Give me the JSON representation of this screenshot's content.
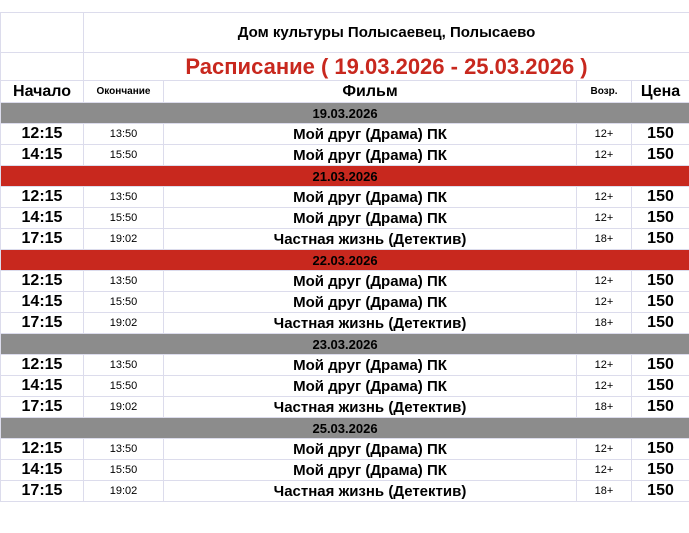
{
  "header": {
    "venue": "Дом культуры Полысаевец, Полысаево",
    "schedule_title": "Расписание ( 19.03.2026 - 25.03.2026 )"
  },
  "columns": {
    "start": "Начало",
    "end": "Окончание",
    "film": "Фильм",
    "age": "Возр.",
    "price": "Цена"
  },
  "colors": {
    "title_red": "#c8281e",
    "date_gray": "#8c8c8c",
    "date_red": "#c8281e"
  },
  "days": [
    {
      "date": "19.03.2026",
      "color": "#8c8c8c",
      "sessions": [
        {
          "start": "12:15",
          "end": "13:50",
          "film": "Мой друг (Драма) ПК",
          "age": "12+",
          "price": "150"
        },
        {
          "start": "14:15",
          "end": "15:50",
          "film": "Мой друг (Драма) ПК",
          "age": "12+",
          "price": "150"
        }
      ]
    },
    {
      "date": "21.03.2026",
      "color": "#c8281e",
      "sessions": [
        {
          "start": "12:15",
          "end": "13:50",
          "film": "Мой друг (Драма) ПК",
          "age": "12+",
          "price": "150"
        },
        {
          "start": "14:15",
          "end": "15:50",
          "film": "Мой друг (Драма) ПК",
          "age": "12+",
          "price": "150"
        },
        {
          "start": "17:15",
          "end": "19:02",
          "film": "Частная жизнь (Детектив)",
          "age": "18+",
          "price": "150"
        }
      ]
    },
    {
      "date": "22.03.2026",
      "color": "#c8281e",
      "sessions": [
        {
          "start": "12:15",
          "end": "13:50",
          "film": "Мой друг (Драма) ПК",
          "age": "12+",
          "price": "150"
        },
        {
          "start": "14:15",
          "end": "15:50",
          "film": "Мой друг (Драма) ПК",
          "age": "12+",
          "price": "150"
        },
        {
          "start": "17:15",
          "end": "19:02",
          "film": "Частная жизнь (Детектив)",
          "age": "18+",
          "price": "150"
        }
      ]
    },
    {
      "date": "23.03.2026",
      "color": "#8c8c8c",
      "sessions": [
        {
          "start": "12:15",
          "end": "13:50",
          "film": "Мой друг (Драма) ПК",
          "age": "12+",
          "price": "150"
        },
        {
          "start": "14:15",
          "end": "15:50",
          "film": "Мой друг (Драма) ПК",
          "age": "12+",
          "price": "150"
        },
        {
          "start": "17:15",
          "end": "19:02",
          "film": "Частная жизнь (Детектив)",
          "age": "18+",
          "price": "150"
        }
      ]
    },
    {
      "date": "25.03.2026",
      "color": "#8c8c8c",
      "sessions": [
        {
          "start": "12:15",
          "end": "13:50",
          "film": "Мой друг (Драма) ПК",
          "age": "12+",
          "price": "150"
        },
        {
          "start": "14:15",
          "end": "15:50",
          "film": "Мой друг (Драма) ПК",
          "age": "12+",
          "price": "150"
        },
        {
          "start": "17:15",
          "end": "19:02",
          "film": "Частная жизнь (Детектив)",
          "age": "18+",
          "price": "150"
        }
      ]
    }
  ]
}
